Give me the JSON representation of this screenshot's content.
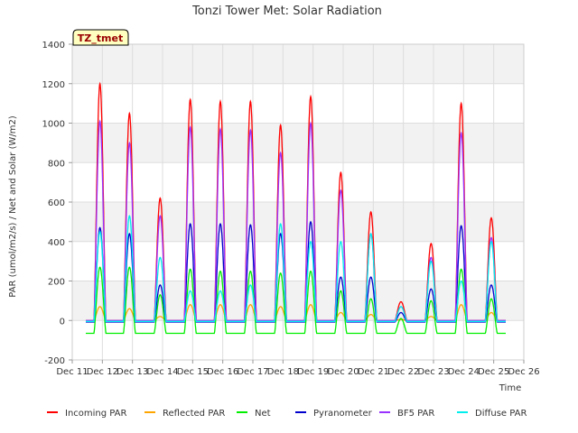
{
  "chart_data": {
    "type": "line",
    "title": "Tonzi Tower Met: Solar Radiation",
    "xlabel": "Time",
    "ylabel": "PAR (umol/m2/s) / Net and Solar (W/m2)",
    "site_tag": "TZ_tmet",
    "ylim": [
      -200,
      1400
    ],
    "yticks": [
      -200,
      0,
      200,
      400,
      600,
      800,
      1000,
      1200,
      1400
    ],
    "xlim": [
      11,
      26
    ],
    "xticks": [
      11,
      12,
      13,
      14,
      15,
      16,
      17,
      18,
      19,
      20,
      21,
      22,
      23,
      24,
      25,
      26
    ],
    "xtick_labels": [
      "Dec 11",
      "Dec 12",
      "Dec 13",
      "Dec 14",
      "Dec 15",
      "Dec 16",
      "Dec 17",
      "Dec 18",
      "Dec 19",
      "Dec 20",
      "Dec 21",
      "Dec 22",
      "Dec 23",
      "Dec 24",
      "Dec 25",
      "Dec 26"
    ],
    "daily_peaks": {
      "days": [
        11.92,
        12.9,
        13.92,
        14.92,
        15.92,
        16.92,
        17.92,
        18.92,
        19.92,
        20.92,
        21.92,
        22.92,
        23.92,
        24.92
      ],
      "incoming_par": [
        1200,
        1050,
        620,
        1120,
        1110,
        1110,
        990,
        1135,
        750,
        550,
        95,
        390,
        1100,
        520
      ],
      "reflected_par": [
        70,
        60,
        20,
        80,
        80,
        80,
        70,
        80,
        40,
        30,
        5,
        20,
        80,
        40
      ],
      "net": [
        270,
        270,
        130,
        260,
        250,
        250,
        240,
        250,
        150,
        110,
        10,
        100,
        260,
        110
      ],
      "pyranometer": [
        470,
        440,
        180,
        490,
        490,
        485,
        440,
        500,
        220,
        220,
        40,
        160,
        480,
        180
      ],
      "bf5_par": [
        1010,
        900,
        530,
        980,
        970,
        965,
        850,
        1000,
        660,
        440,
        70,
        320,
        950,
        420
      ],
      "diffuse_par": [
        450,
        530,
        320,
        150,
        150,
        180,
        490,
        400,
        400,
        440,
        70,
        300,
        200,
        400
      ]
    },
    "night_values": {
      "incoming_par": 0,
      "reflected_par": 0,
      "net": -65,
      "pyranometer": -8,
      "bf5_par": 0,
      "diffuse_par": -5
    },
    "series": [
      {
        "key": "incoming_par",
        "name": "Incoming PAR",
        "color": "#ff0000"
      },
      {
        "key": "reflected_par",
        "name": "Reflected PAR",
        "color": "#ffa500"
      },
      {
        "key": "net",
        "name": "Net",
        "color": "#00ee00"
      },
      {
        "key": "pyranometer",
        "name": "Pyranometer",
        "color": "#0000cc"
      },
      {
        "key": "bf5_par",
        "name": "BF5 PAR",
        "color": "#9a32ff"
      },
      {
        "key": "diffuse_par",
        "name": "Diffuse PAR",
        "color": "#00eeee"
      }
    ],
    "grid": true,
    "legend_position": "bottom"
  }
}
